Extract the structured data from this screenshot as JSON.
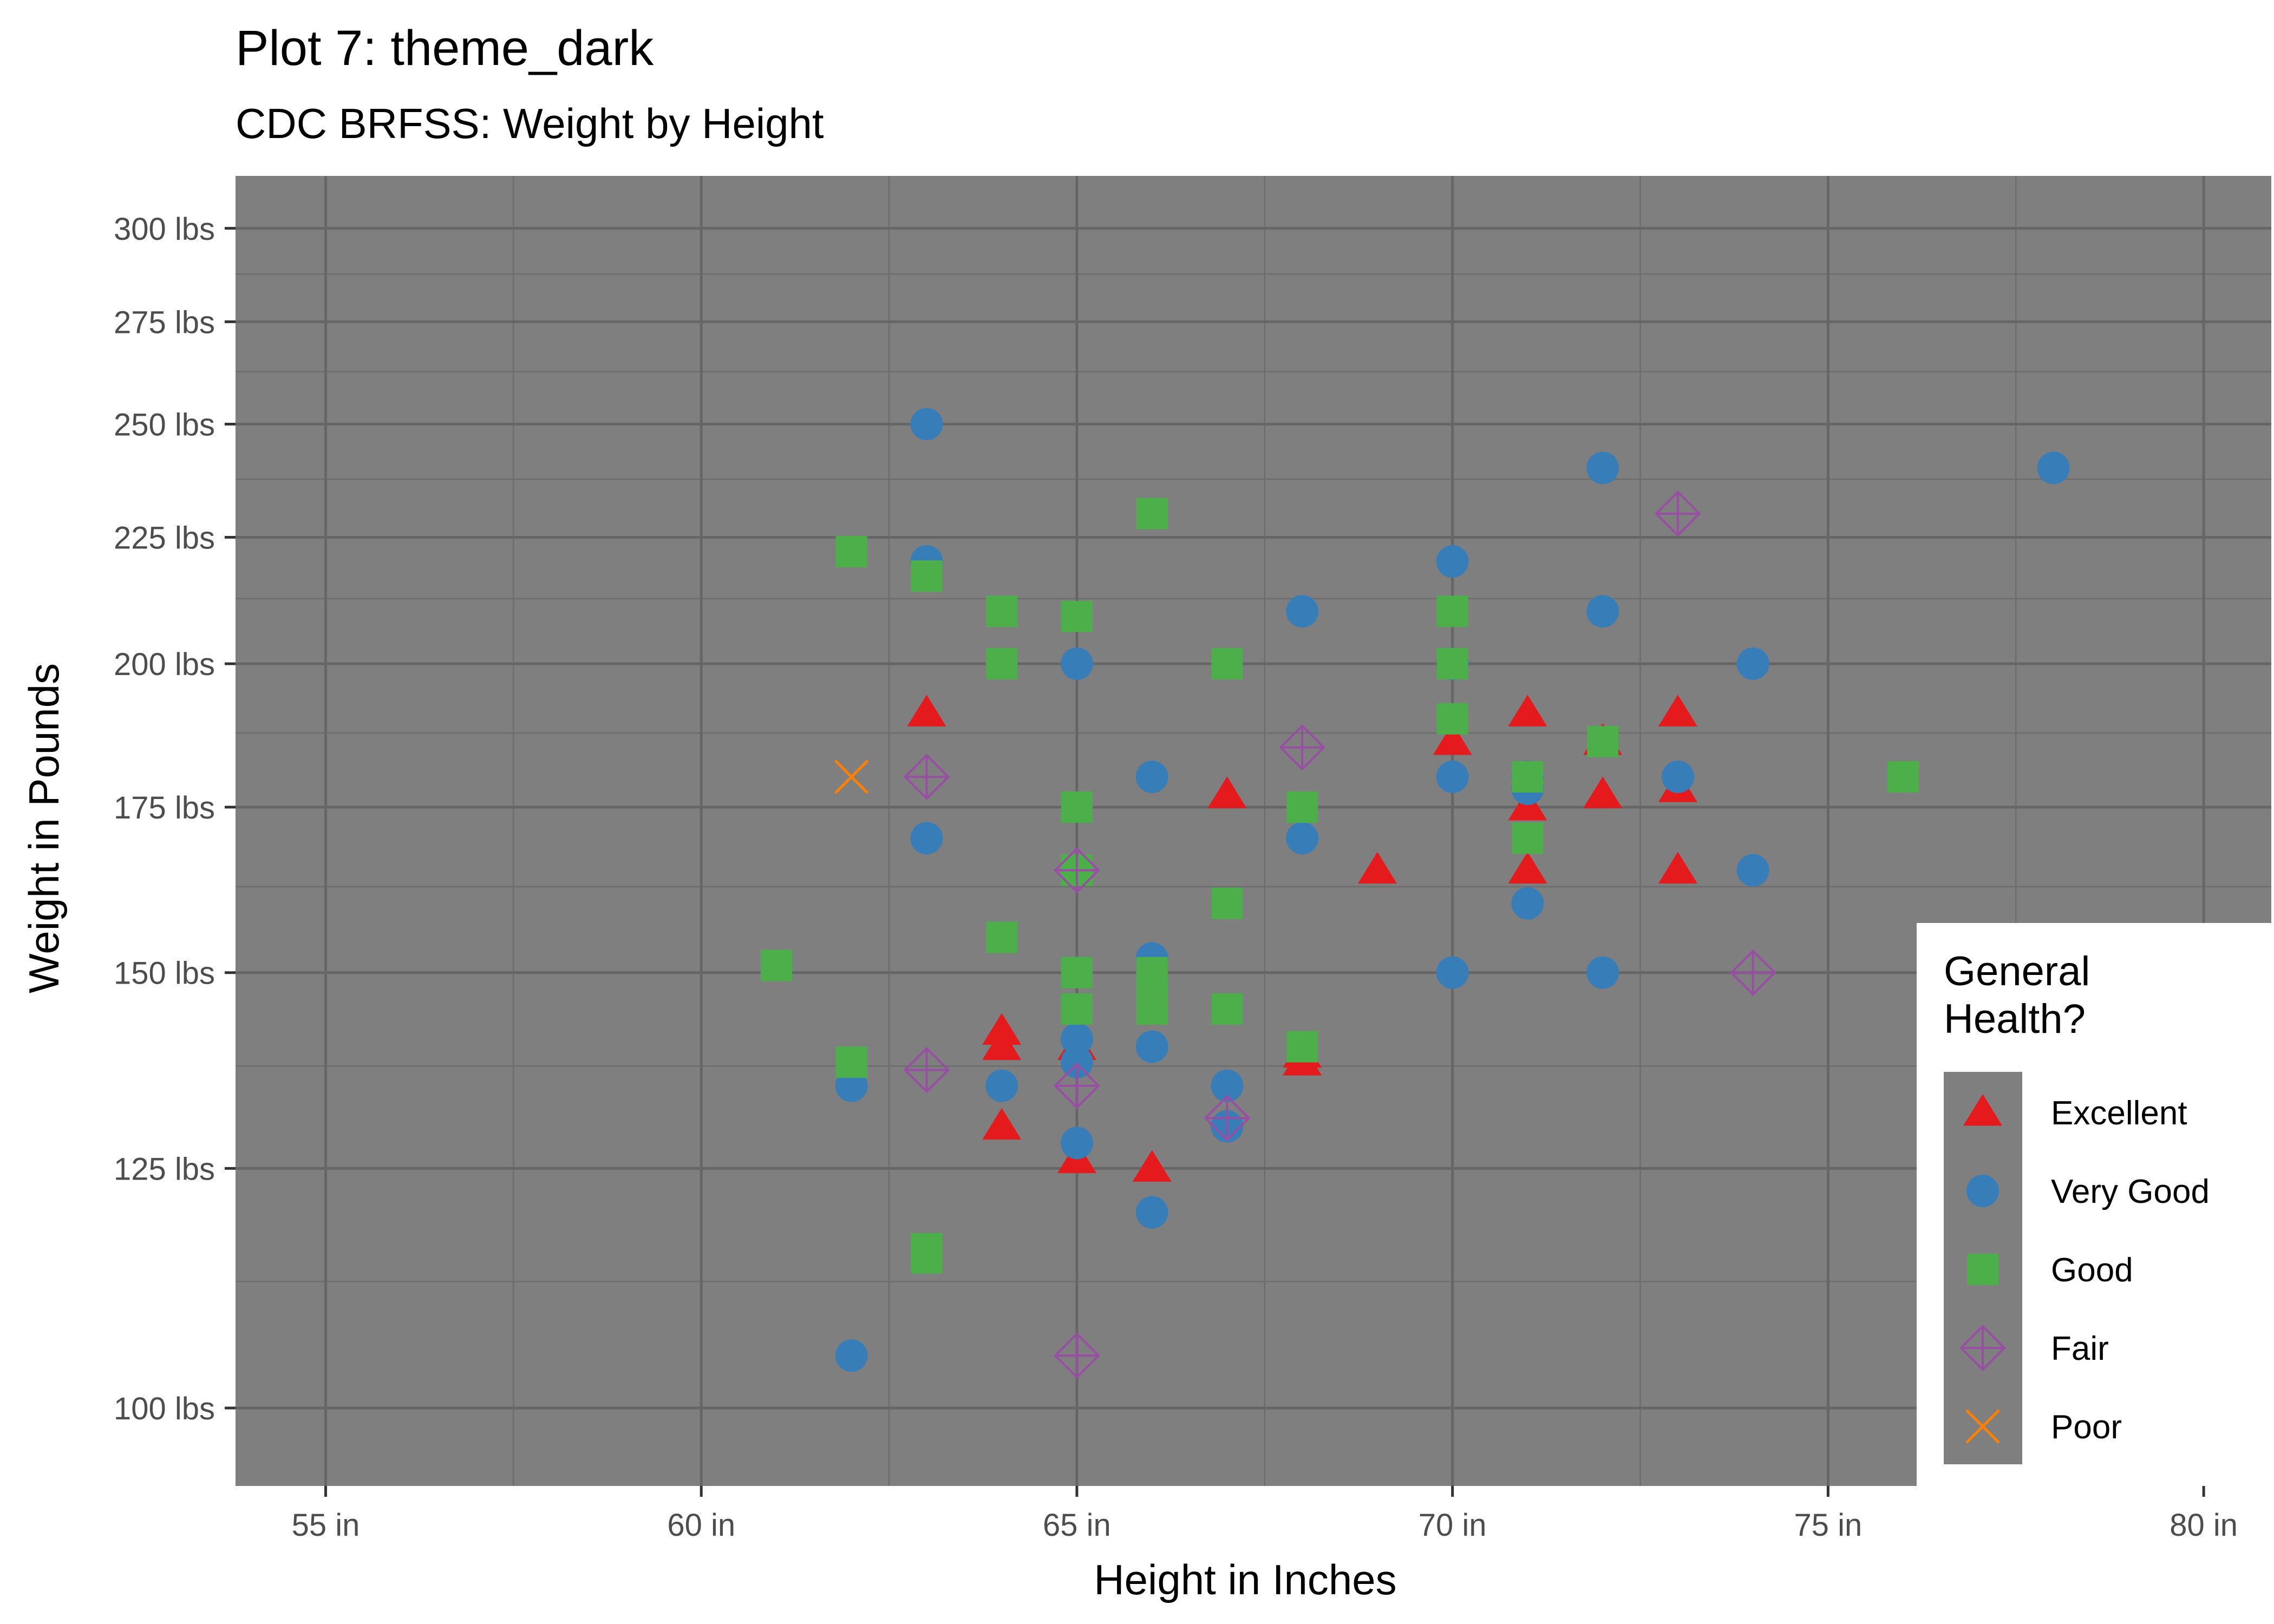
{
  "chart_data": {
    "type": "scatter",
    "title": "Plot 7: theme_dark",
    "subtitle": "CDC BRFSS: Weight by Height",
    "xlabel": "Height in Inches",
    "ylabel": "Weight in Pounds",
    "x_scale": "linear",
    "y_scale": "log",
    "xlim": [
      53.8,
      80.9
    ],
    "ylim": [
      93,
      315
    ],
    "x_ticks": [
      55,
      60,
      65,
      70,
      75,
      80
    ],
    "x_tick_labels": [
      "55 in",
      "60 in",
      "65 in",
      "70 in",
      "75 in",
      "80 in"
    ],
    "y_ticks": [
      100,
      125,
      150,
      175,
      200,
      225,
      250,
      275,
      300
    ],
    "y_tick_labels": [
      "100 lbs",
      "125 lbs",
      "150 lbs",
      "175 lbs",
      "200 lbs",
      "225 lbs",
      "250 lbs",
      "275 lbs",
      "300 lbs"
    ],
    "grid": true,
    "panel_background": "#7f7f7f",
    "legend": {
      "title": "General Health?",
      "title_lines": [
        "General",
        "Health?"
      ],
      "placement": "right",
      "background": "#7f7f7f"
    },
    "series": [
      {
        "name": "Excellent",
        "shape": "triangle",
        "color": "#e41a1c",
        "points": [
          [
            63,
            191
          ],
          [
            64,
            142
          ],
          [
            64,
            140
          ],
          [
            64,
            130
          ],
          [
            65,
            140
          ],
          [
            65,
            126
          ],
          [
            66,
            125
          ],
          [
            67,
            177
          ],
          [
            68,
            139
          ],
          [
            68,
            138
          ],
          [
            69,
            165
          ],
          [
            70,
            186
          ],
          [
            71,
            191
          ],
          [
            71,
            175
          ],
          [
            71,
            165
          ],
          [
            72,
            186
          ],
          [
            72,
            177
          ],
          [
            73,
            191
          ],
          [
            73,
            178
          ],
          [
            73,
            165
          ]
        ]
      },
      {
        "name": "Very Good",
        "shape": "circle",
        "color": "#377eb8",
        "points": [
          [
            62,
            135
          ],
          [
            62,
            105
          ],
          [
            63,
            250
          ],
          [
            63,
            220
          ],
          [
            63,
            170
          ],
          [
            64,
            135
          ],
          [
            65,
            200
          ],
          [
            65,
            141
          ],
          [
            65,
            138
          ],
          [
            65,
            128
          ],
          [
            66,
            180
          ],
          [
            66,
            152
          ],
          [
            66,
            140
          ],
          [
            66,
            120
          ],
          [
            67,
            135
          ],
          [
            67,
            130
          ],
          [
            68,
            210
          ],
          [
            68,
            170
          ],
          [
            70,
            220
          ],
          [
            70,
            200
          ],
          [
            70,
            180
          ],
          [
            70,
            150
          ],
          [
            71,
            180
          ],
          [
            71,
            178
          ],
          [
            71,
            160
          ],
          [
            72,
            240
          ],
          [
            72,
            210
          ],
          [
            72,
            150
          ],
          [
            73,
            180
          ],
          [
            74,
            200
          ],
          [
            74,
            165
          ],
          [
            78,
            240
          ]
        ]
      },
      {
        "name": "Good",
        "shape": "square",
        "color": "#4daf4a",
        "points": [
          [
            61,
            151
          ],
          [
            62,
            222
          ],
          [
            62,
            138
          ],
          [
            63,
            217
          ],
          [
            63,
            116
          ],
          [
            63,
            115
          ],
          [
            64,
            210
          ],
          [
            64,
            200
          ],
          [
            64,
            155
          ],
          [
            65,
            209
          ],
          [
            65,
            175
          ],
          [
            65,
            165
          ],
          [
            65,
            150
          ],
          [
            65,
            145
          ],
          [
            66,
            230
          ],
          [
            66,
            150
          ],
          [
            66,
            148
          ],
          [
            66,
            145
          ],
          [
            67,
            200
          ],
          [
            67,
            160
          ],
          [
            67,
            145
          ],
          [
            68,
            175
          ],
          [
            68,
            140
          ],
          [
            70,
            210
          ],
          [
            70,
            200
          ],
          [
            70,
            190
          ],
          [
            71,
            180
          ],
          [
            71,
            170
          ],
          [
            72,
            186
          ],
          [
            76,
            180
          ]
        ]
      },
      {
        "name": "Fair",
        "shape": "diamond-plus",
        "color": "#984ea3",
        "points": [
          [
            63,
            180
          ],
          [
            63,
            137
          ],
          [
            65,
            165
          ],
          [
            65,
            135
          ],
          [
            65,
            105
          ],
          [
            67,
            131
          ],
          [
            68,
            185
          ],
          [
            73,
            230
          ],
          [
            74,
            150
          ]
        ]
      },
      {
        "name": "Poor",
        "shape": "x",
        "color": "#ff7f00",
        "points": [
          [
            62,
            180
          ]
        ]
      }
    ]
  }
}
